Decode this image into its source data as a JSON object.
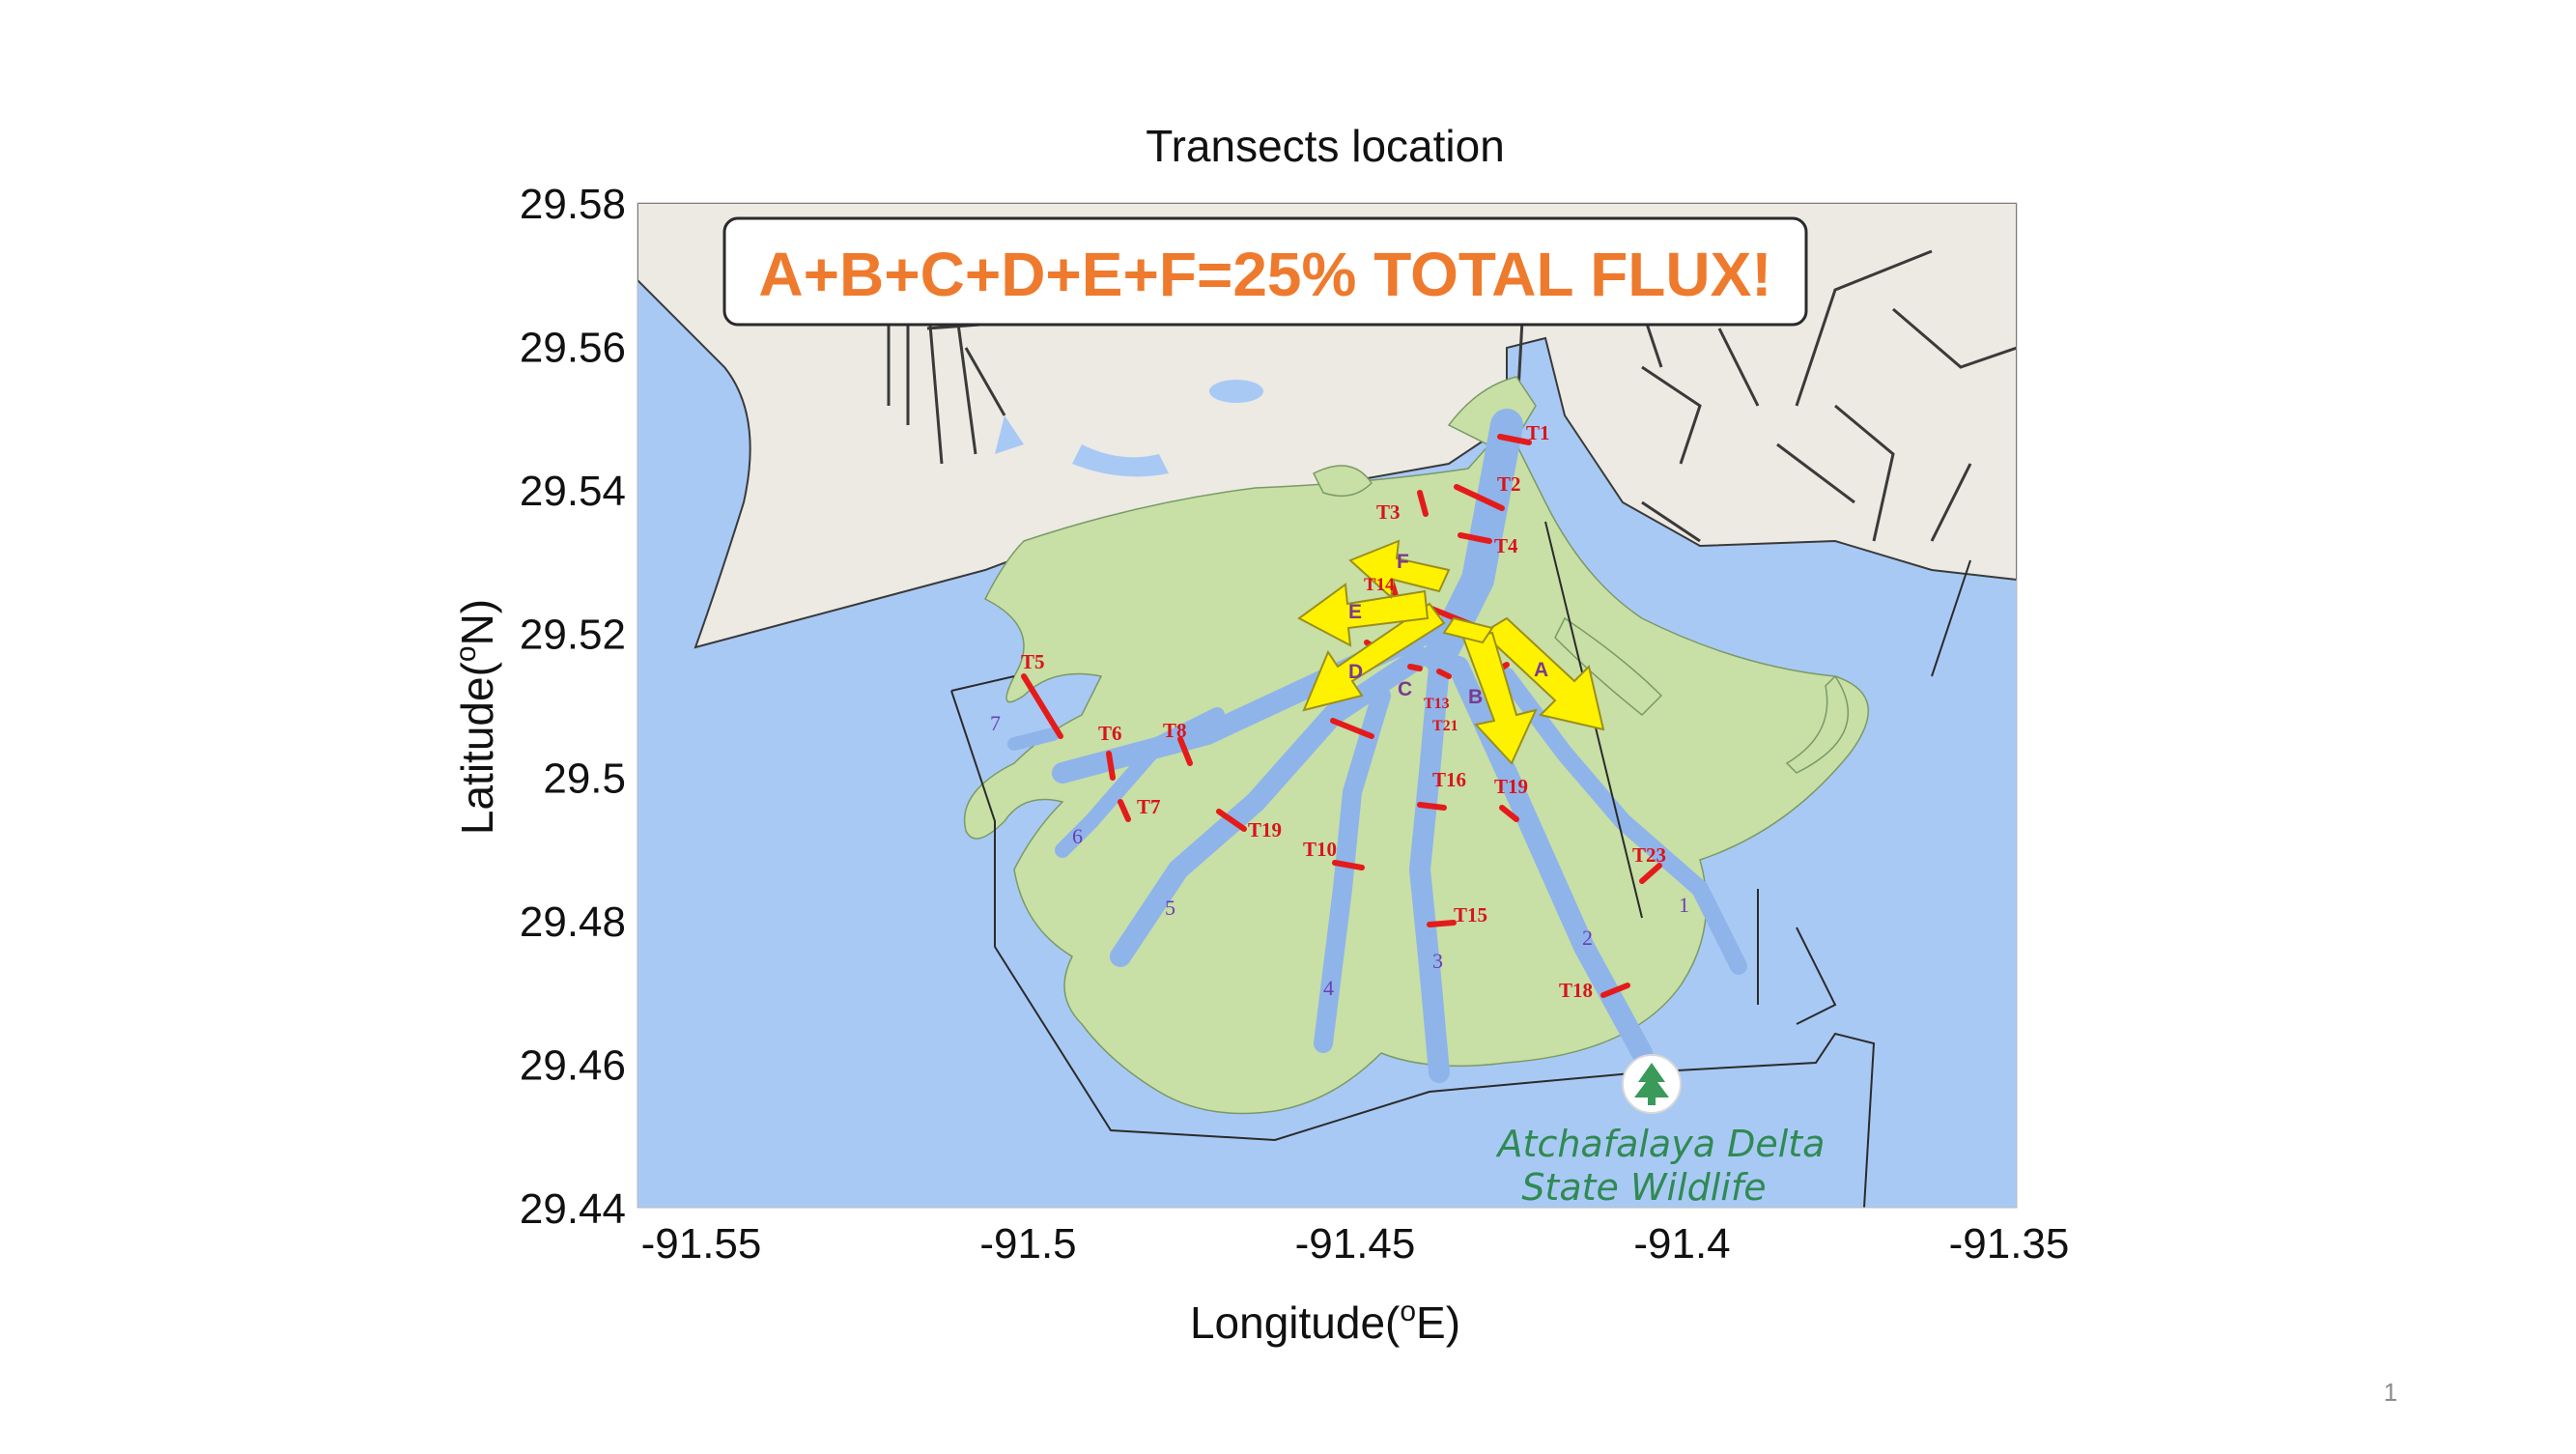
{
  "slide": {
    "page_number": "1"
  },
  "plot": {
    "title": "Transects location",
    "xlabel": "Longitude(",
    "xlabel_sup": "o",
    "xlabel_unit": "E)",
    "ylabel": "Latitude(",
    "ylabel_sup": "o",
    "ylabel_unit": "N)",
    "x_ticks": [
      "-91.55",
      "-91.5",
      "-91.45",
      "-91.4",
      "-91.35"
    ],
    "y_ticks": [
      "29.58",
      "29.56",
      "29.54",
      "29.52",
      "29.5",
      "29.48",
      "29.46",
      "29.44"
    ],
    "xlim": [
      -91.55,
      -91.35
    ],
    "ylim": [
      29.44,
      29.58
    ]
  },
  "banner": {
    "text": "A+B+C+D+E+F=25% TOTAL FLUX!",
    "color": "#ee7a2d"
  },
  "map": {
    "colors": {
      "water": "#a9c9f5",
      "land_north": "#eceae3",
      "marsh": "#c8dfa6",
      "channel": "#93b8ec",
      "transect": "#e41b1b",
      "arrow": "#fff200"
    },
    "place_label_line1": "Atchafalaya Delta",
    "place_label_line2": "State Wildlife",
    "place_icon": "tree-icon"
  },
  "transects": [
    "T1",
    "T2",
    "T3",
    "T4",
    "T14",
    "T5",
    "T6",
    "T8",
    "T7",
    "T13",
    "T21",
    "T16",
    "T19",
    "T19",
    "T10",
    "T15",
    "T18",
    "T23"
  ],
  "channels": [
    "1",
    "2",
    "3",
    "4",
    "5",
    "6",
    "7"
  ],
  "flux_arrows": [
    "A",
    "B",
    "C",
    "D",
    "E",
    "F"
  ]
}
